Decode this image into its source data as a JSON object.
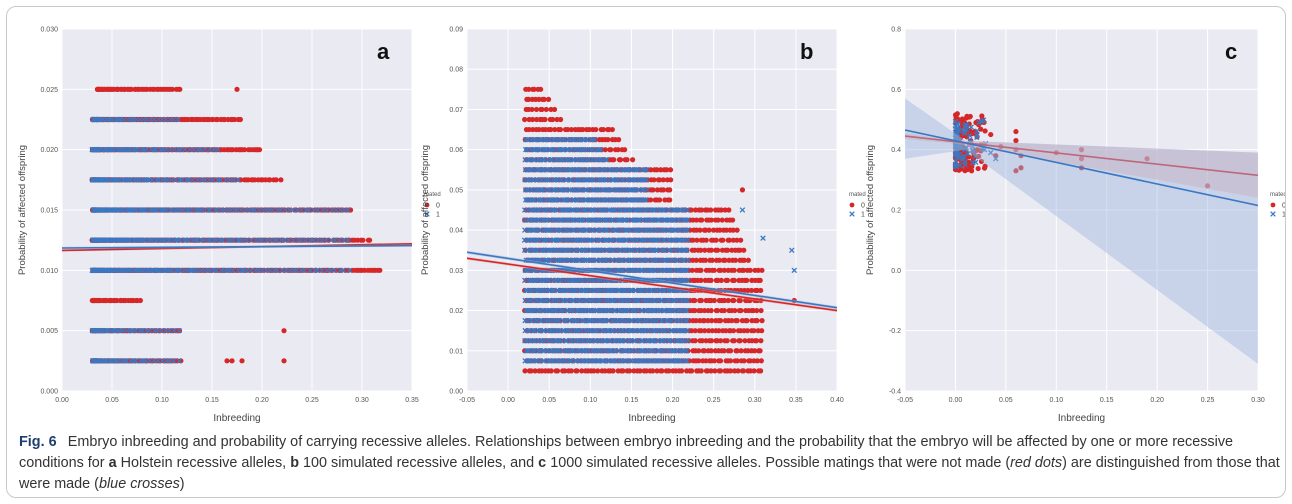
{
  "colors": {
    "not_mated": "#d62728",
    "mated": "#3a78c2",
    "panel_bg": "#eaeaf2",
    "grid": "#ffffff",
    "band_blue": "#9fb8dd",
    "band_red": "#e7a3a3",
    "caption_accent": "#1f3f6f"
  },
  "caption": {
    "fig_label": "Fig. 6",
    "title": "Embryo inbreeding and probability of carrying recessive alleles.",
    "text_1": "Relationships between embryo inbreeding and the probability that the embryo will be affected by one or more recessive conditions for",
    "a_letter": "a",
    "text_a": "Holstein recessive alleles,",
    "b_letter": "b",
    "text_b": "100 simulated recessive alleles, and",
    "c_letter": "c",
    "text_c": "1000 simulated recessive alleles. Possible matings that were not made (",
    "red_dots": "red dots",
    "text_mid": ") are distinguished from those that were made (",
    "blue_crosses": "blue crosses",
    "text_end": ")"
  },
  "chart_data": [
    {
      "panel": "a",
      "type": "scatter",
      "xlabel": "Inbreeding",
      "ylabel": "Probability of affected offspring",
      "xlim": [
        0.0,
        0.35
      ],
      "ylim": [
        0.0,
        0.03
      ],
      "xticks": [
        "0.00",
        "0.05",
        "0.10",
        "0.15",
        "0.20",
        "0.25",
        "0.30",
        "0.35"
      ],
      "yticks": [
        "0.000",
        "0.005",
        "0.010",
        "0.015",
        "0.020",
        "0.025",
        "0.030"
      ],
      "legend": {
        "title": "mated",
        "entries": [
          "0",
          "1"
        ],
        "placement": "right"
      },
      "series": [
        {
          "name": "0",
          "marker": "dot",
          "bands": [
            {
              "y": 0.0025,
              "x": [
                0.03,
                0.12
              ]
            },
            {
              "y": 0.005,
              "x": [
                0.03,
                0.12
              ]
            },
            {
              "y": 0.0075,
              "x": [
                0.03,
                0.08
              ]
            },
            {
              "y": 0.01,
              "x": [
                0.03,
                0.32
              ]
            },
            {
              "y": 0.0125,
              "x": [
                0.03,
                0.31
              ]
            },
            {
              "y": 0.015,
              "x": [
                0.03,
                0.29
              ]
            },
            {
              "y": 0.0175,
              "x": [
                0.03,
                0.22
              ]
            },
            {
              "y": 0.02,
              "x": [
                0.03,
                0.2
              ]
            },
            {
              "y": 0.0225,
              "x": [
                0.03,
                0.18
              ]
            },
            {
              "y": 0.025,
              "x": [
                0.035,
                0.12
              ]
            }
          ]
        },
        {
          "name": "1",
          "marker": "cross",
          "bands": [
            {
              "y": 0.0025,
              "x": [
                0.03,
                0.12
              ]
            },
            {
              "y": 0.005,
              "x": [
                0.03,
                0.12
              ]
            },
            {
              "y": 0.01,
              "x": [
                0.03,
                0.29
              ]
            },
            {
              "y": 0.0125,
              "x": [
                0.03,
                0.29
              ]
            },
            {
              "y": 0.015,
              "x": [
                0.03,
                0.29
              ]
            },
            {
              "y": 0.0175,
              "x": [
                0.03,
                0.18
              ]
            },
            {
              "y": 0.02,
              "x": [
                0.03,
                0.16
              ]
            },
            {
              "y": 0.0225,
              "x": [
                0.03,
                0.12
              ]
            }
          ]
        }
      ],
      "regression": [
        {
          "name": "0",
          "y_at_xmin": 0.01165,
          "y_at_xmax": 0.0122,
          "ci": 0.0001
        },
        {
          "name": "1",
          "y_at_xmin": 0.01185,
          "y_at_xmax": 0.01205,
          "ci": 0.0001
        }
      ],
      "outliers_0": [
        [
          0.175,
          0.025
        ],
        [
          0.222,
          0.0025
        ],
        [
          0.222,
          0.005
        ],
        [
          0.165,
          0.0025
        ],
        [
          0.17,
          0.0025
        ],
        [
          0.18,
          0.0025
        ]
      ]
    },
    {
      "panel": "b",
      "type": "scatter",
      "xlabel": "Inbreeding",
      "ylabel": "Probability of affected offspring",
      "xlim": [
        -0.05,
        0.4
      ],
      "ylim": [
        0.0,
        0.09
      ],
      "xticks": [
        "-0.05",
        "0.00",
        "0.05",
        "0.10",
        "0.15",
        "0.20",
        "0.25",
        "0.30",
        "0.35",
        "0.40"
      ],
      "yticks": [
        "0.00",
        "0.01",
        "0.02",
        "0.03",
        "0.04",
        "0.05",
        "0.06",
        "0.07",
        "0.08",
        "0.09"
      ],
      "legend": {
        "title": "mated",
        "entries": [
          "0",
          "1"
        ],
        "placement": "right"
      },
      "series": [
        {
          "name": "0",
          "marker": "dot",
          "shape": "decreasing",
          "y_range": [
            0.005,
            0.078
          ],
          "x_range": [
            0.02,
            0.31
          ]
        },
        {
          "name": "1",
          "marker": "cross",
          "shape": "decreasing",
          "y_range": [
            0.0075,
            0.065
          ],
          "x_range": [
            0.02,
            0.31
          ]
        }
      ],
      "regression": [
        {
          "name": "0",
          "y_at_xmin": 0.033,
          "y_at_xmax": 0.02,
          "ci": 0.0004
        },
        {
          "name": "1",
          "y_at_xmin": 0.0345,
          "y_at_xmax": 0.0207,
          "ci": 0.0004
        }
      ],
      "outliers_1": [
        [
          0.345,
          0.035
        ],
        [
          0.348,
          0.03
        ],
        [
          0.31,
          0.038
        ],
        [
          0.285,
          0.045
        ]
      ],
      "outliers_0": [
        [
          0.348,
          0.0225
        ],
        [
          0.285,
          0.05
        ]
      ]
    },
    {
      "panel": "c",
      "type": "scatter",
      "xlabel": "Inbreeding",
      "ylabel": "Probability of affected offspring",
      "xlim": [
        -0.05,
        0.3
      ],
      "ylim": [
        -0.4,
        0.8
      ],
      "xticks": [
        "-0.05",
        "0.00",
        "0.05",
        "0.10",
        "0.15",
        "0.20",
        "0.25",
        "0.30"
      ],
      "yticks": [
        "-0.4",
        "-0.2",
        "0.0",
        "0.2",
        "0.4",
        "0.6",
        "0.8"
      ],
      "legend": {
        "title": "mated",
        "entries": [
          "0",
          "1"
        ],
        "placement": "right"
      },
      "series": [
        {
          "name": "0",
          "marker": "dot",
          "cluster": {
            "x": [
              0.0,
              0.03
            ],
            "y": [
              0.33,
              0.52
            ]
          },
          "points": [
            [
              0.06,
              0.46
            ],
            [
              0.06,
              0.43
            ],
            [
              0.06,
              0.4
            ],
            [
              0.065,
              0.38
            ],
            [
              0.065,
              0.34
            ],
            [
              0.06,
              0.33
            ],
            [
              0.1,
              0.39
            ],
            [
              0.125,
              0.4
            ],
            [
              0.125,
              0.37
            ],
            [
              0.125,
              0.34
            ],
            [
              0.19,
              0.37
            ],
            [
              0.25,
              0.28
            ],
            [
              0.045,
              0.41
            ],
            [
              0.04,
              0.38
            ],
            [
              0.035,
              0.45
            ]
          ]
        },
        {
          "name": "1",
          "marker": "cross",
          "cluster": {
            "x": [
              0.0,
              0.03
            ],
            "y": [
              0.34,
              0.5
            ]
          },
          "points": [
            [
              0.04,
              0.37
            ],
            [
              0.035,
              0.39
            ],
            [
              0.03,
              0.42
            ]
          ]
        }
      ],
      "regression": [
        {
          "name": "0",
          "y_at_xmin": 0.445,
          "y_at_xmax": 0.315,
          "ci_low_xmax": 0.24,
          "ci_high_xmax": 0.39
        },
        {
          "name": "1",
          "y_at_xmin": 0.465,
          "y_at_xmax": 0.215,
          "ci_low_xmin": 0.37,
          "ci_high_xmin": 0.57,
          "ci_low_xmax": -0.31,
          "ci_high_xmax": 0.39
        }
      ]
    }
  ]
}
